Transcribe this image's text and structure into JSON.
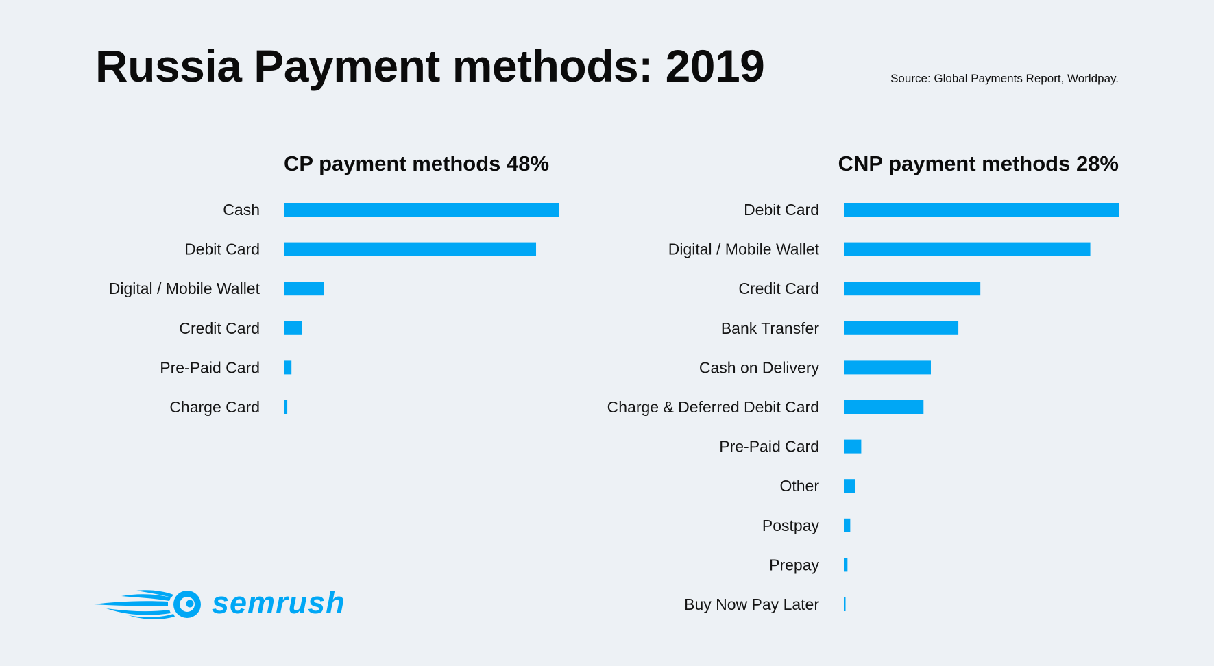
{
  "title": "Russia Payment methods: 2019",
  "source": "Source: Global Payments Report, Worldpay.",
  "colors": {
    "bar": "#00a7f5",
    "background": "#edf1f5",
    "logo": "#00a7f5"
  },
  "logo": {
    "wordmark": "semrush",
    "icon": "comet-icon"
  },
  "chart_data": [
    {
      "type": "bar",
      "orientation": "horizontal",
      "title": "CP payment methods 48%",
      "categories": [
        "Cash",
        "Debit Card",
        "Digital / Mobile Wallet",
        "Credit Card",
        "Pre-Paid Card",
        "Charge Card"
      ],
      "values": [
        59,
        54,
        8.5,
        3.7,
        1.5,
        0.6
      ],
      "xlim": [
        0,
        59
      ],
      "grid": false,
      "legend": "none"
    },
    {
      "type": "bar",
      "orientation": "horizontal",
      "title": "CNP payment methods 28%",
      "categories": [
        "Debit Card",
        "Digital / Mobile Wallet",
        "Credit Card",
        "Bank Transfer",
        "Cash on Delivery",
        "Charge & Deferred Debit Card",
        "Pre-Paid Card",
        "Other",
        "Postpay",
        "Prepay",
        "Buy Now Pay Later"
      ],
      "values": [
        30,
        26.9,
        14.9,
        12.5,
        9.5,
        8.7,
        1.9,
        1.2,
        0.7,
        0.4,
        0.1
      ],
      "xlim": [
        0,
        30
      ],
      "grid": false,
      "legend": "none"
    }
  ]
}
